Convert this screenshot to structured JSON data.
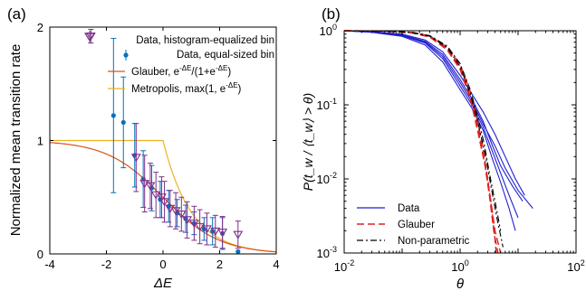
{
  "chart_data": [
    {
      "panel_label": "(a)",
      "type": "scatter",
      "xlabel": "ΔE",
      "ylabel": "Normalized mean transition rate",
      "xlim": [
        -4,
        4
      ],
      "ylim": [
        0,
        2
      ],
      "xticks": [
        "-4",
        "-2",
        "0",
        "2",
        "4"
      ],
      "yticks": [
        "0",
        "1",
        "2"
      ],
      "grid": false,
      "legend_position": "top-right",
      "legend": {
        "data_hist": "Data, histogram-equalized bin",
        "data_equal": "Data, equal-sized bin",
        "glauber_name": "Glauber, ",
        "glauber_formula": "e",
        "glauber_exp": "-ΔE",
        "glauber_tail": "/(1+e",
        "glauber_tail_exp": "-ΔE",
        "glauber_close": ")",
        "metropolis_name": "Metropolis, max(1, e",
        "metropolis_exp": "-ΔE",
        "metropolis_close": ")"
      },
      "colors": {
        "hist": "#7E2F8E",
        "equal": "#0072BD",
        "glauber": "#D95319",
        "metropolis": "#EDB120"
      },
      "series": [
        {
          "name": "Data, histogram-equalized bin",
          "marker": "triangle-down",
          "points": [
            {
              "x": -2.55,
              "y": 1.92,
              "err": 0.06
            },
            {
              "x": -0.95,
              "y": 0.85,
              "err": 0.3
            },
            {
              "x": -0.65,
              "y": 0.62,
              "err": 0.25
            },
            {
              "x": -0.45,
              "y": 0.6,
              "err": 0.2
            },
            {
              "x": -0.25,
              "y": 0.52,
              "err": 0.2
            },
            {
              "x": -0.05,
              "y": 0.5,
              "err": 0.18
            },
            {
              "x": 0.05,
              "y": 0.46,
              "err": 0.18
            },
            {
              "x": 0.25,
              "y": 0.4,
              "err": 0.16
            },
            {
              "x": 0.45,
              "y": 0.38,
              "err": 0.16
            },
            {
              "x": 0.65,
              "y": 0.35,
              "err": 0.15
            },
            {
              "x": 0.85,
              "y": 0.3,
              "err": 0.16
            },
            {
              "x": 1.1,
              "y": 0.27,
              "err": 0.15
            },
            {
              "x": 1.3,
              "y": 0.24,
              "err": 0.15
            },
            {
              "x": 1.55,
              "y": 0.22,
              "err": 0.14
            },
            {
              "x": 1.85,
              "y": 0.2,
              "err": 0.14
            },
            {
              "x": 2.1,
              "y": 0.19,
              "err": 0.14
            },
            {
              "x": 2.65,
              "y": 0.17,
              "err": 0.12
            }
          ]
        },
        {
          "name": "Data, equal-sized bin",
          "marker": "circle",
          "points": [
            {
              "x": -1.75,
              "y": 1.22,
              "err": 0.68
            },
            {
              "x": -1.4,
              "y": 1.16,
              "err": 0.4
            },
            {
              "x": -1.0,
              "y": 0.87,
              "err": 0.28
            },
            {
              "x": -0.7,
              "y": 0.66,
              "err": 0.25
            },
            {
              "x": -0.4,
              "y": 0.58,
              "err": 0.2
            },
            {
              "x": -0.1,
              "y": 0.48,
              "err": 0.16
            },
            {
              "x": 0.2,
              "y": 0.42,
              "err": 0.14
            },
            {
              "x": 0.5,
              "y": 0.36,
              "err": 0.12
            },
            {
              "x": 0.8,
              "y": 0.31,
              "err": 0.12
            },
            {
              "x": 1.1,
              "y": 0.27,
              "err": 0.1
            },
            {
              "x": 1.45,
              "y": 0.22,
              "err": 0.1
            },
            {
              "x": 1.75,
              "y": 0.2,
              "err": 0.12
            },
            {
              "x": 2.1,
              "y": 0.18,
              "err": 0.14
            },
            {
              "x": 2.65,
              "y": 0.02,
              "err": 0.0
            }
          ]
        },
        {
          "name": "Glauber",
          "kind": "glauber-curve"
        },
        {
          "name": "Metropolis",
          "kind": "metropolis-curve"
        }
      ]
    },
    {
      "panel_label": "(b)",
      "type": "line",
      "xlabel": "θ",
      "ylabel": "P(t_w / ⟨t_w⟩ > θ)",
      "xscale": "log",
      "yscale": "log",
      "xlim": [
        0.01,
        100
      ],
      "ylim": [
        0.001,
        1
      ],
      "xticks": [
        {
          "b": "10",
          "e": "-2"
        },
        {
          "b": "10",
          "e": "0"
        },
        {
          "b": "10",
          "e": "2"
        }
      ],
      "yticks": [
        {
          "b": "10",
          "e": "-3"
        },
        {
          "b": "10",
          "e": "-2"
        },
        {
          "b": "10",
          "e": "-1"
        },
        {
          "b": "10",
          "e": "0"
        }
      ],
      "grid": false,
      "legend_position": "bottom-left",
      "legend": {
        "data": "Data",
        "glauber": "Glauber",
        "nonparametric": "Non-parametric"
      },
      "colors": {
        "data": "#1F1FD0",
        "glauber": "#E02020",
        "nonparametric": "#000000"
      },
      "series": [
        {
          "name": "Data",
          "group": "data",
          "points": [
            [
              0.01,
              1
            ],
            [
              0.03,
              0.97
            ],
            [
              0.1,
              0.88
            ],
            [
              0.25,
              0.72
            ],
            [
              0.5,
              0.48
            ],
            [
              1,
              0.22
            ],
            [
              1.6,
              0.12
            ],
            [
              2.5,
              0.06
            ],
            [
              3.5,
              0.03
            ],
            [
              5,
              0.015
            ],
            [
              8,
              0.008
            ],
            [
              12,
              0.005
            ]
          ]
        },
        {
          "name": "Data",
          "group": "data",
          "points": [
            [
              0.01,
              1
            ],
            [
              0.03,
              0.96
            ],
            [
              0.1,
              0.86
            ],
            [
              0.25,
              0.68
            ],
            [
              0.5,
              0.42
            ],
            [
              1,
              0.18
            ],
            [
              1.6,
              0.1
            ],
            [
              2.5,
              0.05
            ],
            [
              3.5,
              0.025
            ],
            [
              5,
              0.012
            ],
            [
              7,
              0.006
            ],
            [
              10,
              0.003
            ]
          ]
        },
        {
          "name": "Data",
          "group": "data",
          "points": [
            [
              0.01,
              1
            ],
            [
              0.03,
              0.97
            ],
            [
              0.1,
              0.9
            ],
            [
              0.25,
              0.75
            ],
            [
              0.5,
              0.52
            ],
            [
              1,
              0.25
            ],
            [
              1.6,
              0.14
            ],
            [
              2.5,
              0.08
            ],
            [
              4,
              0.04
            ],
            [
              6,
              0.02
            ],
            [
              9,
              0.01
            ],
            [
              13,
              0.006
            ]
          ]
        },
        {
          "name": "Data",
          "group": "data",
          "points": [
            [
              0.01,
              1
            ],
            [
              0.03,
              0.95
            ],
            [
              0.1,
              0.84
            ],
            [
              0.25,
              0.64
            ],
            [
              0.5,
              0.38
            ],
            [
              1,
              0.16
            ],
            [
              1.6,
              0.09
            ],
            [
              2.5,
              0.045
            ],
            [
              3.5,
              0.02
            ],
            [
              5,
              0.009
            ],
            [
              7,
              0.004
            ],
            [
              9,
              0.002
            ]
          ]
        },
        {
          "name": "Data",
          "group": "data",
          "points": [
            [
              0.01,
              1
            ],
            [
              0.03,
              0.96
            ],
            [
              0.1,
              0.87
            ],
            [
              0.25,
              0.7
            ],
            [
              0.5,
              0.45
            ],
            [
              1,
              0.2
            ],
            [
              1.6,
              0.11
            ],
            [
              2.5,
              0.055
            ],
            [
              4,
              0.028
            ],
            [
              6,
              0.014
            ],
            [
              10,
              0.007
            ],
            [
              18,
              0.004
            ]
          ]
        },
        {
          "name": "Glauber",
          "group": "glauber",
          "points": [
            [
              0.01,
              1
            ],
            [
              0.05,
              0.99
            ],
            [
              0.15,
              0.95
            ],
            [
              0.3,
              0.85
            ],
            [
              0.6,
              0.6
            ],
            [
              1,
              0.35
            ],
            [
              1.5,
              0.15
            ],
            [
              2,
              0.06
            ],
            [
              2.5,
              0.025
            ],
            [
              3,
              0.01
            ],
            [
              3.5,
              0.004
            ],
            [
              4,
              0.0015
            ],
            [
              4.2,
              0.001
            ]
          ]
        },
        {
          "name": "Glauber",
          "group": "glauber",
          "points": [
            [
              0.01,
              1
            ],
            [
              0.05,
              0.99
            ],
            [
              0.15,
              0.94
            ],
            [
              0.3,
              0.83
            ],
            [
              0.6,
              0.57
            ],
            [
              1,
              0.32
            ],
            [
              1.5,
              0.13
            ],
            [
              2,
              0.05
            ],
            [
              2.6,
              0.018
            ],
            [
              3.2,
              0.006
            ],
            [
              3.8,
              0.002
            ],
            [
              4.5,
              0.001
            ]
          ]
        },
        {
          "name": "Glauber",
          "group": "glauber",
          "points": [
            [
              0.01,
              1
            ],
            [
              0.05,
              0.985
            ],
            [
              0.15,
              0.93
            ],
            [
              0.3,
              0.82
            ],
            [
              0.6,
              0.55
            ],
            [
              1,
              0.3
            ],
            [
              1.5,
              0.12
            ],
            [
              2,
              0.045
            ],
            [
              2.7,
              0.015
            ],
            [
              3.4,
              0.005
            ],
            [
              4,
              0.002
            ],
            [
              5,
              0.001
            ]
          ]
        },
        {
          "name": "Non-parametric",
          "group": "nonparametric",
          "points": [
            [
              0.01,
              1
            ],
            [
              0.05,
              0.99
            ],
            [
              0.15,
              0.95
            ],
            [
              0.3,
              0.86
            ],
            [
              0.6,
              0.62
            ],
            [
              1,
              0.36
            ],
            [
              1.5,
              0.16
            ],
            [
              2,
              0.07
            ],
            [
              2.6,
              0.03
            ],
            [
              3.2,
              0.012
            ],
            [
              4,
              0.005
            ],
            [
              5,
              0.002
            ]
          ]
        },
        {
          "name": "Non-parametric",
          "group": "nonparametric",
          "points": [
            [
              0.01,
              1
            ],
            [
              0.05,
              0.99
            ],
            [
              0.15,
              0.94
            ],
            [
              0.3,
              0.84
            ],
            [
              0.6,
              0.59
            ],
            [
              1,
              0.33
            ],
            [
              1.5,
              0.14
            ],
            [
              2,
              0.06
            ],
            [
              2.7,
              0.022
            ],
            [
              3.4,
              0.008
            ],
            [
              4.3,
              0.003
            ],
            [
              5.5,
              0.0012
            ]
          ]
        }
      ]
    }
  ]
}
